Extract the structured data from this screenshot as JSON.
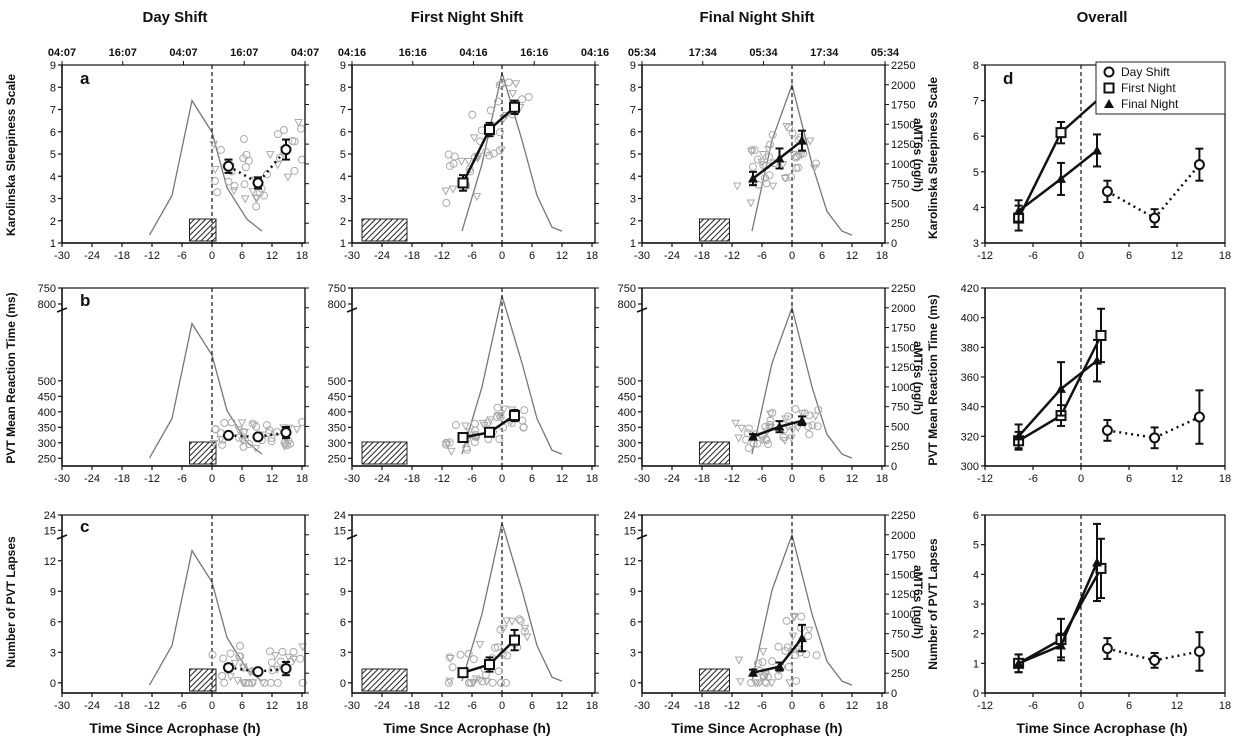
{
  "column_titles": [
    "Day Shift",
    "First Night Shift",
    "Final Night Shift",
    "Overall"
  ],
  "x_axis_titles": [
    "Time Since Acrophase (h)",
    "Time Snce Acrophase (h)",
    "Time Since Acrophase (h)",
    "Time Since Acrophase (h)"
  ],
  "clock_ticks": [
    [
      "04:07",
      "16:07",
      "04:07",
      "16:07",
      "04:07"
    ],
    [
      "04:16",
      "16:16",
      "04:16",
      "16:16",
      "04:16"
    ],
    [
      "05:34",
      "17:34",
      "05:34",
      "17:34",
      "05:34"
    ]
  ],
  "y_axis_titles": [
    "Karolinska Sleepiness Scale",
    "PVT Mean Reaction  Time (ms)",
    "Number of PVT Lapses"
  ],
  "right_axis_title": "aMT6s (ng/h)",
  "panel_letters": [
    "a",
    "b",
    "c",
    "d"
  ],
  "legend": [
    "Day Shift",
    "First Night",
    "Final Night"
  ],
  "chart_data": {
    "type": "line",
    "description_x": "hours since melatonin acrophase",
    "x_ticks_main": [
      -30,
      -24,
      -18,
      -12,
      -6,
      0,
      6,
      12,
      18
    ],
    "x_ticks_overall": [
      -12,
      -6,
      0,
      6,
      12,
      18
    ],
    "rows": [
      {
        "measure": "Karolinska Sleepiness Scale",
        "ylim": [
          1,
          9
        ],
        "yticks": [
          1,
          2,
          3,
          4,
          5,
          6,
          7,
          8,
          9
        ],
        "overall_ylim": [
          3,
          8
        ],
        "overall_yticks": [
          3,
          4,
          5,
          6,
          7,
          8
        ]
      },
      {
        "measure": "PVT Mean Reaction Time (ms)",
        "ylim": [
          225,
          800
        ],
        "yticks": [
          250,
          300,
          350,
          400,
          450,
          500
        ],
        "ybreak_ticks": [
          750,
          800
        ],
        "overall_ylim": [
          300,
          420
        ],
        "overall_yticks": [
          300,
          320,
          340,
          360,
          380,
          400,
          420
        ]
      },
      {
        "measure": "Number of PVT Lapses",
        "ylim": [
          -1,
          16.5
        ],
        "yticks": [
          0,
          3,
          6,
          9,
          12,
          15
        ],
        "ybreak_ticks": [
          24
        ],
        "overall_ylim": [
          0,
          6
        ],
        "overall_yticks": [
          0,
          1,
          2,
          3,
          4,
          5,
          6
        ]
      }
    ],
    "amt6s_axis": {
      "ylim": [
        0,
        2250
      ],
      "yticks": [
        0,
        250,
        500,
        750,
        1000,
        1250,
        1500,
        1750,
        2000,
        2250
      ]
    },
    "amt6s_profiles": [
      {
        "shift": "Day Shift",
        "x": [
          -12.5,
          -8,
          -4,
          0,
          3,
          7,
          10
        ],
        "y": [
          100,
          600,
          1800,
          1400,
          700,
          300,
          150
        ]
      },
      {
        "shift": "First Night Shift",
        "x": [
          -8,
          -4,
          0,
          4,
          7,
          10,
          12
        ],
        "y": [
          150,
          1000,
          2150,
          1300,
          600,
          200,
          150
        ]
      },
      {
        "shift": "Final Night Shift",
        "x": [
          -8,
          -4,
          0,
          4,
          7,
          10,
          12
        ],
        "y": [
          150,
          1300,
          2000,
          1000,
          400,
          150,
          100
        ]
      }
    ],
    "sleep_bars": [
      {
        "shift": "Day Shift",
        "x0": -4.5,
        "x1": 0.8
      },
      {
        "shift": "First Night Shift",
        "x0": -28,
        "x1": -19
      },
      {
        "shift": "Final Night Shift",
        "x0": -18.5,
        "x1": -12.5
      }
    ],
    "means": {
      "kss": [
        {
          "shift": "Day Shift",
          "x": [
            3.3,
            9.2,
            14.8
          ],
          "y": [
            4.45,
            3.7,
            5.2
          ],
          "err": [
            0.3,
            0.25,
            0.45
          ]
        },
        {
          "shift": "First Night",
          "x": [
            -7.8,
            -2.5,
            2.5
          ],
          "y": [
            3.7,
            6.1,
            7.1
          ],
          "err": [
            0.35,
            0.3,
            0.3
          ]
        },
        {
          "shift": "Final Night",
          "x": [
            -7.8,
            -2.5,
            2.0
          ],
          "y": [
            3.9,
            4.8,
            5.6
          ],
          "err": [
            0.3,
            0.45,
            0.45
          ]
        }
      ],
      "pvt_rt": [
        {
          "shift": "Day Shift",
          "x": [
            3.3,
            9.2,
            14.8
          ],
          "y": [
            324,
            319,
            333
          ],
          "err": [
            7,
            7,
            18
          ]
        },
        {
          "shift": "First Night",
          "x": [
            -7.8,
            -2.5,
            2.5
          ],
          "y": [
            317,
            334,
            388
          ],
          "err": [
            6,
            7,
            18
          ]
        },
        {
          "shift": "Final Night",
          "x": [
            -7.8,
            -2.5,
            2.0
          ],
          "y": [
            320,
            352,
            371
          ],
          "err": [
            8,
            18,
            14
          ]
        }
      ],
      "pvt_lapses": [
        {
          "shift": "Day Shift",
          "x": [
            3.3,
            9.2,
            14.8
          ],
          "y": [
            1.5,
            1.1,
            1.4
          ],
          "err": [
            0.35,
            0.25,
            0.65
          ]
        },
        {
          "shift": "First Night",
          "x": [
            -7.8,
            -2.5,
            2.5
          ],
          "y": [
            1.0,
            1.8,
            4.2
          ],
          "err": [
            0.3,
            0.7,
            1.0
          ]
        },
        {
          "shift": "Final Night",
          "x": [
            -7.8,
            -2.5,
            2.0
          ],
          "y": [
            1.0,
            1.6,
            4.4
          ],
          "err": [
            0.3,
            0.4,
            1.3
          ]
        }
      ]
    },
    "individual_points_note": "grey open circles and triangles show individual observations"
  }
}
